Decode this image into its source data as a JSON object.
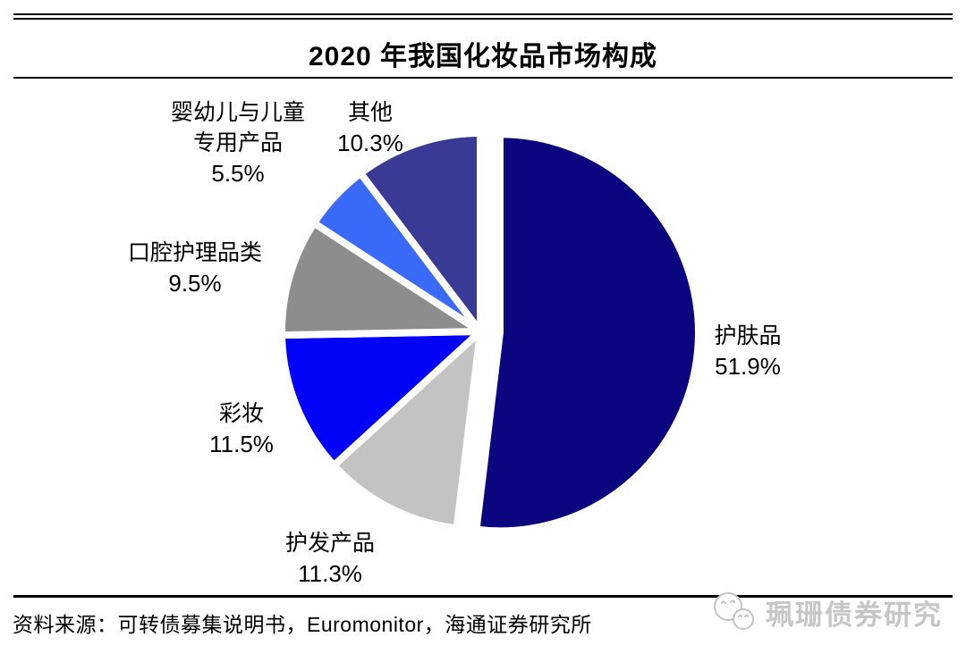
{
  "page": {
    "title": "2020 年我国化妆品市场构成",
    "source_label": "资料来源：可转债募集说明书，Euromonitor，海通证券研究所",
    "watermark": {
      "text": "珮珊债券研究",
      "icon": "mascot-chat-bubbles-icon",
      "color": "#c6c6c6"
    }
  },
  "chart_data": {
    "type": "pie",
    "title": "2020 年我国化妆品市场构成",
    "unit": "%",
    "start_angle_deg": 0,
    "direction": "clockwise",
    "legend": "none",
    "gap_color": "#ffffff",
    "slices": [
      {
        "key": "skincare",
        "label": "护肤品",
        "value": 51.9,
        "pct": "51.9%",
        "color": "#0B0680",
        "exploded": true
      },
      {
        "key": "haircare",
        "label": "护发产品",
        "value": 11.3,
        "pct": "11.3%",
        "color": "#C3C3C3",
        "exploded": false
      },
      {
        "key": "makeup",
        "label": "彩妆",
        "value": 11.5,
        "pct": "11.5%",
        "color": "#0202F8",
        "exploded": false
      },
      {
        "key": "oral-care",
        "label": "口腔护理品类",
        "value": 9.5,
        "pct": "9.5%",
        "color": "#8D8D8D",
        "exploded": false
      },
      {
        "key": "baby-children",
        "label": "婴幼儿与儿童专用产品",
        "label_line1": "婴幼儿与儿童",
        "label_line2": "专用产品",
        "value": 5.5,
        "pct": "5.5%",
        "color": "#3A6AF8",
        "exploded": false
      },
      {
        "key": "other",
        "label": "其他",
        "value": 10.3,
        "pct": "10.3%",
        "color": "#393A96",
        "exploded": false
      }
    ]
  }
}
